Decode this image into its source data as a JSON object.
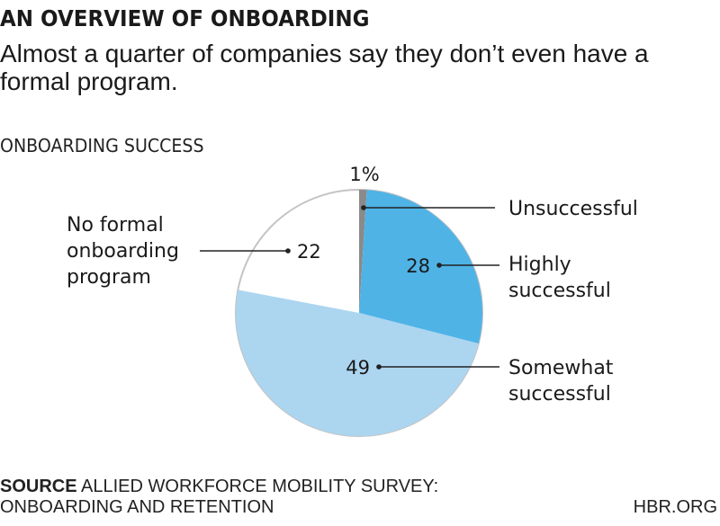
{
  "title": "AN OVERVIEW OF ONBOARDING",
  "subtitle": "Almost a quarter of companies say they don’t even have a formal program.",
  "section_label": "ONBOARDING SUCCESS",
  "source_label": "SOURCE",
  "source_text_line1": "ALLIED WORKFORCE MOBILITY SURVEY:",
  "source_text_line2": "ONBOARDING AND RETENTION",
  "brand": "HBR.ORG",
  "chart_data": {
    "type": "pie",
    "title": "ONBOARDING SUCCESS",
    "unit": "%",
    "start": "12 o'clock",
    "direction": "clockwise",
    "slices": [
      {
        "label": "Unsuccessful",
        "value": 1,
        "value_label": "1%",
        "color": "#8a8a8a"
      },
      {
        "label": "Highly successful",
        "value": 28,
        "value_label": "28",
        "color": "#4fb3e6"
      },
      {
        "label": "Somewhat successful",
        "value": 49,
        "value_label": "49",
        "color": "#acd5f0"
      },
      {
        "label": "No formal onboarding program",
        "value": 22,
        "value_label": "22",
        "color": "#ffffff"
      }
    ],
    "label_lines": {
      "Unsuccessful": [
        "Unsuccessful"
      ],
      "Highly successful": [
        "Highly",
        "successful"
      ],
      "Somewhat successful": [
        "Somewhat",
        "successful"
      ],
      "No formal onboarding program": [
        "No formal",
        "onboarding",
        "program"
      ]
    },
    "outline_color": "#c4c4c4"
  }
}
